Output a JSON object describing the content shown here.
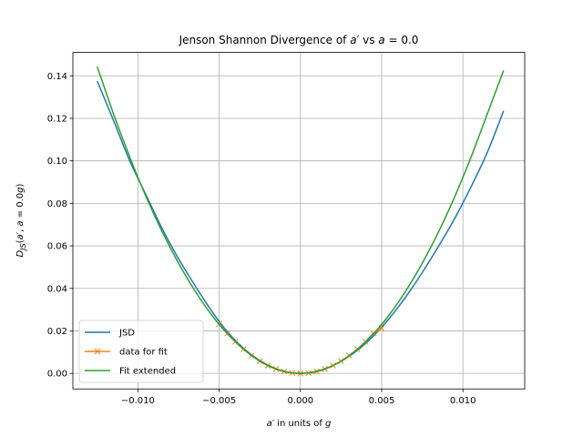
{
  "chart_data": {
    "type": "line",
    "title": "Jenson Shannon Divergence of a′ vs a = 0.0",
    "xlabel": "a′ in units of g",
    "ylabel": "D_JS(a′, a = 0.0g)",
    "xlim": [
      -0.014,
      0.0138
    ],
    "ylim": [
      -0.0073,
      0.151
    ],
    "x_ticks": [
      -0.01,
      -0.005,
      0.0,
      0.005,
      0.01
    ],
    "x_tick_labels": [
      "−0.010",
      "−0.005",
      "0.000",
      "0.005",
      "0.010"
    ],
    "y_ticks": [
      0.0,
      0.02,
      0.04,
      0.06,
      0.08,
      0.1,
      0.12,
      0.14
    ],
    "y_tick_labels": [
      "0.00",
      "0.02",
      "0.04",
      "0.06",
      "0.08",
      "0.10",
      "0.12",
      "0.14"
    ],
    "grid": true,
    "legend_position": "lower-left",
    "series": [
      {
        "name": "JSD",
        "color": "#1f77b4",
        "marker": "none",
        "x": [
          -0.0125,
          -0.0115,
          -0.0105,
          -0.0095,
          -0.0085,
          -0.0075,
          -0.0065,
          -0.0055,
          -0.0045,
          -0.0035,
          -0.0025,
          -0.0015,
          -0.0005,
          0.0005,
          0.0015,
          0.0025,
          0.0035,
          0.0045,
          0.0055,
          0.0065,
          0.0075,
          0.0085,
          0.0095,
          0.0105,
          0.0115,
          0.0125
        ],
        "y": [
          0.1375,
          0.119,
          0.1,
          0.084,
          0.068,
          0.054,
          0.0415,
          0.0298,
          0.0196,
          0.0118,
          0.0061,
          0.0022,
          0.0003,
          0.0003,
          0.0021,
          0.0057,
          0.0108,
          0.0177,
          0.0262,
          0.0362,
          0.0475,
          0.0598,
          0.073,
          0.0878,
          0.104,
          0.1235
        ]
      },
      {
        "name": "data for fit",
        "color": "#ff7f0e",
        "marker": "x",
        "x": [
          -0.005,
          -0.0045,
          -0.004,
          -0.0035,
          -0.003,
          -0.0025,
          -0.002,
          -0.0015,
          -0.001,
          -0.0005,
          0.0,
          0.0005,
          0.001,
          0.0015,
          0.002,
          0.0025,
          0.003,
          0.0035,
          0.004,
          0.0045,
          0.005
        ],
        "y": [
          0.0232,
          0.0188,
          0.0149,
          0.0114,
          0.0084,
          0.0058,
          0.0037,
          0.0021,
          0.0009,
          0.0002,
          0.0,
          0.0002,
          0.0009,
          0.0021,
          0.0037,
          0.0058,
          0.0084,
          0.0114,
          0.0149,
          0.0188,
          0.0212
        ]
      },
      {
        "name": "Fit extended",
        "color": "#2ca02c",
        "marker": "none",
        "x": [
          -0.0125,
          -0.0115,
          -0.0105,
          -0.0095,
          -0.0085,
          -0.0075,
          -0.0065,
          -0.0055,
          -0.0045,
          -0.0035,
          -0.0025,
          -0.0015,
          -0.0005,
          0.0005,
          0.0015,
          0.0025,
          0.0035,
          0.0045,
          0.0055,
          0.0065,
          0.0075,
          0.0085,
          0.0095,
          0.0105,
          0.0115,
          0.0125
        ],
        "y": [
          0.1443,
          0.1221,
          0.1018,
          0.0832,
          0.0666,
          0.0519,
          0.039,
          0.0279,
          0.0187,
          0.0114,
          0.0058,
          0.0021,
          0.0002,
          0.0002,
          0.0021,
          0.0058,
          0.0114,
          0.0187,
          0.0279,
          0.039,
          0.0519,
          0.0666,
          0.0832,
          0.1018,
          0.1221,
          0.1425
        ]
      }
    ]
  }
}
